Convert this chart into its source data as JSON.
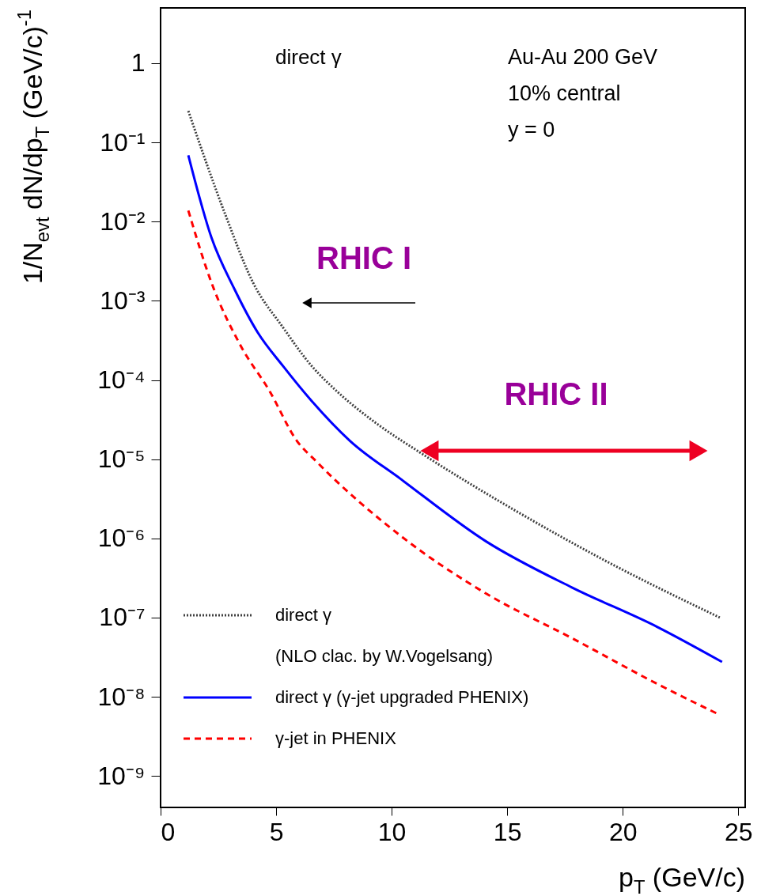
{
  "chart_data": {
    "type": "line",
    "xlabel": "p$_{T}$ (GeV/c)",
    "ylabel": "1/N$_{evt}$ dN/dp$_{T}$ (GeV/c)$^{-1}$",
    "annotations": [
      "direct γ",
      "Au-Au 200 GeV\n10% central\ny = 0",
      "RHIC I",
      "RHIC II"
    ],
    "xlim": [
      0,
      25.3
    ],
    "xticks": [
      0,
      5,
      10,
      15,
      20,
      25
    ],
    "ylim": [
      4e-10,
      5
    ],
    "log": "y",
    "yticks": [
      1,
      {
        "value": 0.1,
        "label": "10⁻¹"
      },
      {
        "value": 0.01,
        "label": "10⁻²"
      },
      {
        "value": 0.001,
        "label": "10⁻³"
      },
      {
        "value": 0.0001,
        "label": "10⁻⁴"
      },
      {
        "value": 1e-05,
        "label": "10⁻⁵"
      },
      {
        "value": 1e-06,
        "label": "10⁻⁶"
      },
      {
        "value": 1e-07,
        "label": "10⁻⁷"
      },
      {
        "value": 1e-08,
        "label": "10⁻⁸"
      },
      {
        "value": 1e-09,
        "label": "10⁻⁹"
      }
    ],
    "grid": false,
    "legend": "bottom left",
    "series": [
      {
        "name": "direct γ\n(NLO clac. by W.Vogelsang)",
        "color": "#404040",
        "line_style": "dotted",
        "x": [
          1.2,
          2.8,
          4.0,
          5.3,
          6.5,
          7.7,
          9.4,
          11.2,
          15.4,
          19.1,
          24.2
        ],
        "values": [
          0.25,
          0.0123,
          0.0017,
          0.00046,
          0.000155,
          6.9e-05,
          2.75e-05,
          1.23e-05,
          2.2e-06,
          5.5e-07,
          1e-07
        ]
      },
      {
        "name": "direct γ (γ-jet upgraded PHENIX)",
        "color": "#0000ff",
        "line_style": "solid",
        "x": [
          1.2,
          2.2,
          3.2,
          4.2,
          5.3,
          6.5,
          8.2,
          10.4,
          14.1,
          17.8,
          21.5,
          24.3
        ],
        "values": [
          0.069,
          0.0063,
          0.0014,
          0.0004,
          0.00015,
          5.6e-05,
          1.7e-05,
          5.6e-06,
          9.1e-07,
          2.4e-07,
          7.6e-08,
          2.75e-08
        ]
      },
      {
        "name": "γ-jet in PHENIX",
        "color": "#ff0000",
        "line_style": "dashed",
        "x": [
          1.2,
          2.2,
          3.5,
          4.7,
          5.9,
          6.75,
          10.4,
          14.1,
          17.8,
          21.5,
          24.2
        ],
        "values": [
          0.0138,
          0.0017,
          0.00026,
          7.4e-05,
          1.7e-05,
          9.3e-06,
          1.07e-06,
          2e-07,
          5.5e-08,
          1.45e-08,
          5.9e-09
        ]
      }
    ]
  }
}
